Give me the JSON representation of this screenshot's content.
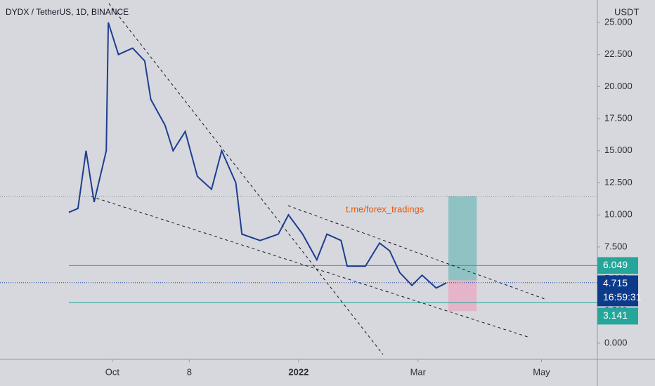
{
  "chart_data": {
    "type": "line",
    "title": "DYDX / TetherUS, 1D, BINANCE",
    "y_unit": "USDT",
    "annotation": "t.me/forex_tradings",
    "x": [
      -21.5,
      -17,
      -13,
      -9,
      -3,
      -2,
      3,
      10,
      16,
      19,
      26,
      30,
      36,
      42,
      49,
      54,
      61,
      64,
      73,
      82,
      87,
      94,
      101,
      106,
      113,
      116,
      125,
      132,
      137,
      142,
      148,
      153,
      160,
      165
    ],
    "series": [
      {
        "name": "DYDX / TetherUS",
        "color": "#1f3d8f",
        "values": [
          10.2,
          10.5,
          15,
          11,
          15,
          25,
          22.5,
          23,
          22,
          19,
          17,
          15,
          16.5,
          13,
          12,
          15,
          12.5,
          8.5,
          8,
          8.5,
          10,
          8.5,
          6.5,
          8.5,
          8,
          6,
          6,
          7.8,
          7.2,
          5.5,
          4.5,
          5.3,
          4.3,
          4.7
        ]
      }
    ],
    "xlim": [
      -55.5,
      239.6
    ],
    "ylim": [
      -1.26,
      26.75
    ],
    "xticks": [
      {
        "value": 0,
        "label": "Oct"
      },
      {
        "value": 38,
        "label": "8"
      },
      {
        "value": 92,
        "label": "2022"
      },
      {
        "value": 151,
        "label": "Mar"
      },
      {
        "value": 212,
        "label": "May"
      }
    ],
    "yticks": [
      {
        "value": 0,
        "label": "0.000"
      },
      {
        "value": 2.5,
        "label": "2.500"
      },
      {
        "value": 5,
        "label": "5.000"
      },
      {
        "value": 7.5,
        "label": "7.500"
      },
      {
        "value": 10,
        "label": "10.000"
      },
      {
        "value": 12.5,
        "label": "12.500"
      },
      {
        "value": 15,
        "label": "15.000"
      },
      {
        "value": 17.5,
        "label": "17.500"
      },
      {
        "value": 20,
        "label": "20.000"
      },
      {
        "value": 22.5,
        "label": "22.500"
      },
      {
        "value": 25,
        "label": "25.000"
      }
    ],
    "levels": [
      {
        "value": 6.049,
        "label": "6.049",
        "color": "#26a69a"
      },
      {
        "value": 4.715,
        "label": "4.715",
        "color": "#0d3b8c",
        "countdown": "16:59:31"
      },
      {
        "value": 3.141,
        "label": "3.141",
        "color": "#26a69a"
      }
    ],
    "position": {
      "start": 166,
      "end": 180,
      "target": 11.45,
      "entry": 4.9,
      "stop": 2.5
    },
    "trendlines": [
      [
        [
          -1.7,
          26.48
        ],
        [
          133.7,
          -0.88
        ]
      ],
      [
        [
          86.8,
          10.72
        ],
        [
          213.5,
          3.45
        ]
      ],
      [
        [
          -10.4,
          11.43
        ],
        [
          205.2,
          0.49
        ]
      ]
    ]
  }
}
